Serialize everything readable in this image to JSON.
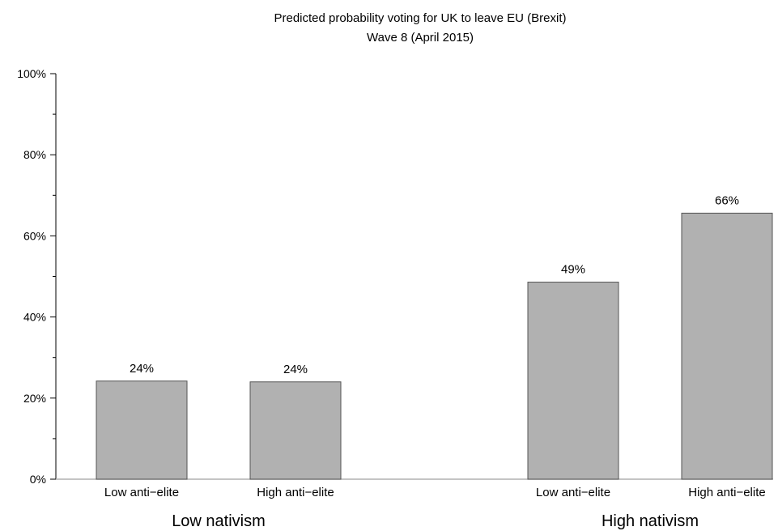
{
  "chart_data": {
    "type": "bar",
    "title": "Predicted probability voting for UK to leave EU (Brexit)",
    "subtitle": "Wave 8 (April 2015)",
    "ylim": [
      0,
      100
    ],
    "y_ticks": [
      "0%",
      "20%",
      "40%",
      "60%",
      "80%",
      "100%"
    ],
    "y_tick_values": [
      0,
      20,
      40,
      60,
      80,
      100
    ],
    "groups": [
      {
        "name": "Low nativism",
        "bars": [
          {
            "category": "Low anti−elite",
            "value": 24.2,
            "label": "24%"
          },
          {
            "category": "High anti−elite",
            "value": 24.0,
            "label": "24%"
          }
        ]
      },
      {
        "name": "High nativism",
        "bars": [
          {
            "category": "Low anti−elite",
            "value": 48.6,
            "label": "49%"
          },
          {
            "category": "High anti−elite",
            "value": 65.6,
            "label": "66%"
          }
        ]
      }
    ],
    "grid": false,
    "legend": "none",
    "bar_color": "#b1b1b1"
  }
}
